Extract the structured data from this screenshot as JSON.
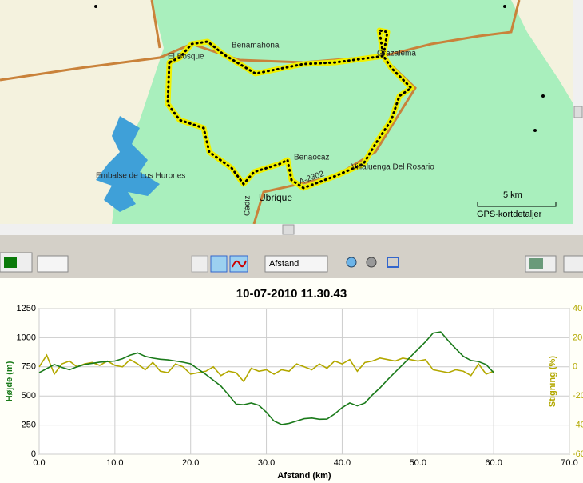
{
  "map": {
    "labels": [
      "Benamahona",
      "El Bosque",
      "Grazalema",
      "Benaocaz",
      "Villaluenga Del Rosario",
      "A-2302",
      "Embalse de Los Hurones",
      "Ubrique",
      "Cádiz"
    ],
    "scale": "5 km",
    "detail": "GPS-kortdetaljer"
  },
  "toolbar": {
    "x_axis_mode": "Afstand"
  },
  "chart_data": {
    "type": "line",
    "title": "10-07-2010 11.30.43",
    "x_label": "Afstand (km)",
    "y_label": "Højde (m)",
    "y2_label": "Stigning (%)",
    "x": [
      0,
      1,
      2,
      3,
      4,
      5,
      6,
      7,
      8,
      9,
      10,
      11,
      12,
      13,
      14,
      15,
      16,
      17,
      18,
      19,
      20,
      21,
      22,
      23,
      24,
      25,
      26,
      27,
      28,
      29,
      30,
      31,
      32,
      33,
      34,
      35,
      36,
      37,
      38,
      39,
      40,
      41,
      42,
      43,
      44,
      45,
      46,
      47,
      48,
      49,
      50,
      51,
      52,
      53,
      54,
      55,
      56,
      57,
      58,
      59,
      60
    ],
    "series": [
      {
        "name": "Højde",
        "color": "#1a7a1a",
        "values": [
          700,
          735,
          770,
          745,
          725,
          750,
          770,
          780,
          790,
          795,
          800,
          820,
          850,
          870,
          840,
          825,
          815,
          810,
          800,
          790,
          776,
          730,
          685,
          635,
          585,
          510,
          430,
          425,
          440,
          420,
          360,
          285,
          255,
          265,
          285,
          305,
          310,
          300,
          302,
          345,
          400,
          440,
          415,
          440,
          510,
          570,
          640,
          705,
          770,
          835,
          900,
          965,
          1040,
          1050,
          975,
          905,
          840,
          805,
          795,
          770,
          700
        ]
      },
      {
        "name": "Stigning",
        "color": "#b3a800",
        "axis": "y2",
        "values": [
          0,
          8,
          -5,
          2,
          4,
          0,
          2,
          3,
          1,
          4,
          1,
          0,
          5,
          2,
          -2,
          3,
          -3,
          -4,
          2,
          0,
          -5,
          -4,
          -3,
          0,
          -6,
          -3,
          -4,
          -10,
          -1,
          -3,
          -2,
          -5,
          -2,
          -3,
          2,
          0,
          -2,
          2,
          -1,
          4,
          2,
          5,
          -3,
          3,
          4,
          6,
          5,
          4,
          6,
          5,
          4,
          5,
          -2,
          -3,
          -4,
          -2,
          -3,
          -6,
          2,
          -5,
          -3
        ]
      }
    ],
    "xlim": [
      0,
      70
    ],
    "xticks": [
      {
        "value": 0,
        "label": "0.0"
      },
      {
        "value": 10,
        "label": "10.0"
      },
      {
        "value": 20,
        "label": "20.0"
      },
      {
        "value": 30,
        "label": "30.0"
      },
      {
        "value": 40,
        "label": "40.0"
      },
      {
        "value": 50,
        "label": "50.0"
      },
      {
        "value": 60,
        "label": "60.0"
      },
      {
        "value": 70,
        "label": "70.0"
      }
    ],
    "ylim": [
      0,
      1250
    ],
    "yticks": [
      0,
      250,
      500,
      750,
      1000,
      1250
    ],
    "y2lim": [
      -60,
      40
    ],
    "y2ticks": [
      -60,
      -40,
      -20,
      0,
      20,
      40
    ],
    "grid": true
  }
}
